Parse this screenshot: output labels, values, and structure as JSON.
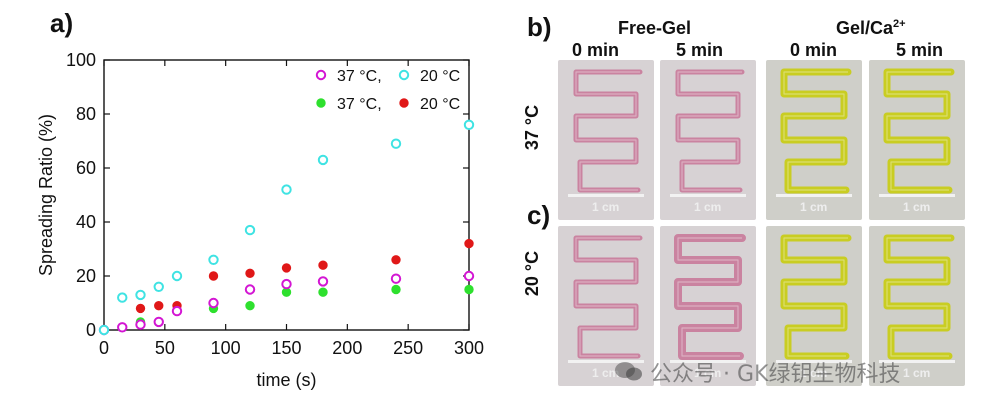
{
  "figure": {
    "panel_a_label": "a)",
    "panel_b_label": "b)",
    "panel_c_label": "c)",
    "group_free_gel": "Free-Gel",
    "group_gel_ca": "Gel/Ca",
    "group_gel_ca_sup": "2+",
    "col_0min": "0 min",
    "col_5min": "5 min",
    "row_37": "37 °C",
    "row_20": "20 °C",
    "scale_label": "1 cm",
    "watermark": "公众号 · GK绿钥生物科技"
  },
  "colors": {
    "magenta": "#d316d3",
    "cyan": "#3fe3e3",
    "green": "#2ee02e",
    "red": "#e01818",
    "pink_gel": "#c97a9a",
    "yellow_gel": "#c8cc10",
    "photo_bg": "#cfcfcf"
  },
  "chart_data": {
    "type": "scatter",
    "xlabel": "time (s)",
    "ylabel": "Spreading Ratio (%)",
    "xlim": [
      0,
      300
    ],
    "ylim": [
      0,
      100
    ],
    "xticks": [
      0,
      50,
      100,
      150,
      200,
      250,
      300
    ],
    "yticks": [
      0,
      20,
      40,
      60,
      80,
      100
    ],
    "grid": false,
    "legend_position": "top-right",
    "series": [
      {
        "name": "37 °C,",
        "marker": "open",
        "color": "#d316d3",
        "x": [
          0,
          15,
          30,
          45,
          60,
          90,
          120,
          150,
          180,
          240,
          300
        ],
        "y": [
          0,
          1,
          2,
          3,
          7,
          10,
          15,
          17,
          18,
          19,
          20
        ]
      },
      {
        "name": "20 °C",
        "marker": "open",
        "color": "#3fe3e3",
        "x": [
          0,
          15,
          30,
          45,
          60,
          90,
          120,
          150,
          180,
          240,
          300
        ],
        "y": [
          0,
          12,
          13,
          16,
          20,
          26,
          37,
          52,
          63,
          69,
          76
        ]
      },
      {
        "name": "37 °C,",
        "marker": "filled",
        "color": "#2ee02e",
        "x": [
          0,
          15,
          30,
          45,
          60,
          90,
          120,
          150,
          180,
          240,
          300
        ],
        "y": [
          0,
          1,
          3,
          3,
          7,
          8,
          9,
          14,
          14,
          15,
          15
        ]
      },
      {
        "name": "20 °C",
        "marker": "filled",
        "color": "#e01818",
        "x": [
          0,
          15,
          30,
          45,
          60,
          90,
          120,
          150,
          180,
          240,
          300
        ],
        "y": [
          0,
          1,
          8,
          9,
          9,
          20,
          21,
          23,
          24,
          26,
          32
        ]
      }
    ]
  }
}
